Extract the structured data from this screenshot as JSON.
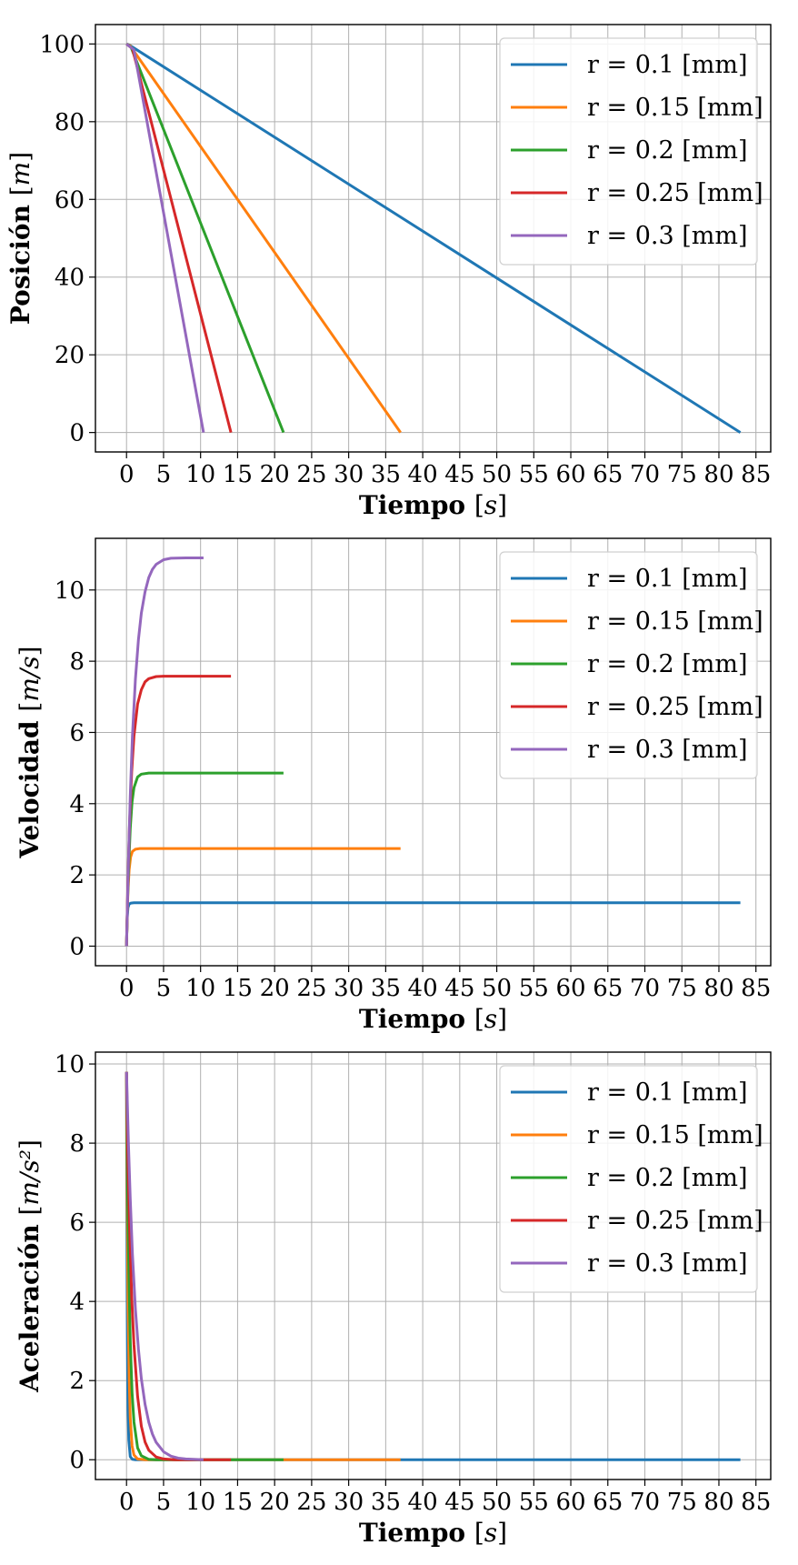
{
  "chart_data": [
    {
      "type": "line",
      "xlabel_bold": "Tiempo",
      "xlabel_unit": "s",
      "ylabel_bold": "Posición",
      "ylabel_unit": "m",
      "xlim": [
        -4.2,
        87
      ],
      "ylim": [
        -5,
        105
      ],
      "xticks": [
        0,
        5,
        10,
        15,
        20,
        25,
        30,
        35,
        40,
        45,
        50,
        55,
        60,
        65,
        70,
        75,
        80,
        85
      ],
      "yticks": [
        0,
        20,
        40,
        60,
        80,
        100
      ],
      "grid": true,
      "legend_position": "top-right",
      "series": [
        {
          "name": "r = 0.1 [mm]",
          "color": "#1f77b4",
          "points": [
            [
              0,
              100
            ],
            [
              0.3,
              99.8
            ],
            [
              82.9,
              0
            ]
          ]
        },
        {
          "name": "r = 0.15 [mm]",
          "color": "#ff7f0e",
          "points": [
            [
              0,
              100
            ],
            [
              0.5,
              99.5
            ],
            [
              37.0,
              0
            ]
          ]
        },
        {
          "name": "r = 0.2 [mm]",
          "color": "#2ca02c",
          "points": [
            [
              0,
              100
            ],
            [
              0.6,
              99.2
            ],
            [
              21.2,
              0
            ]
          ]
        },
        {
          "name": "r = 0.25 [mm]",
          "color": "#d62728",
          "points": [
            [
              0,
              100
            ],
            [
              0.8,
              98.8
            ],
            [
              14.1,
              0
            ]
          ]
        },
        {
          "name": "r = 0.3 [mm]",
          "color": "#9467bd",
          "points": [
            [
              0,
              100
            ],
            [
              1.0,
              98.5
            ],
            [
              10.4,
              0
            ]
          ]
        }
      ]
    },
    {
      "type": "line",
      "xlabel_bold": "Tiempo",
      "xlabel_unit": "s",
      "ylabel_bold": "Velocidad",
      "ylabel_unit": "m/s",
      "xlim": [
        -4.2,
        87
      ],
      "ylim": [
        -0.55,
        11.45
      ],
      "xticks": [
        0,
        5,
        10,
        15,
        20,
        25,
        30,
        35,
        40,
        45,
        50,
        55,
        60,
        65,
        70,
        75,
        80,
        85
      ],
      "yticks": [
        0,
        2,
        4,
        6,
        8,
        10
      ],
      "grid": true,
      "legend_position": "top-right",
      "series": [
        {
          "name": "r = 0.1 [mm]",
          "color": "#1f77b4",
          "points": [
            [
              0,
              0
            ],
            [
              0.05,
              0.48
            ],
            [
              0.1,
              0.8
            ],
            [
              0.2,
              1.08
            ],
            [
              0.35,
              1.18
            ],
            [
              0.6,
              1.21
            ],
            [
              1.0,
              1.22
            ],
            [
              82.9,
              1.22
            ]
          ]
        },
        {
          "name": "r = 0.15 [mm]",
          "color": "#ff7f0e",
          "points": [
            [
              0,
              0
            ],
            [
              0.1,
              0.9
            ],
            [
              0.2,
              1.55
            ],
            [
              0.35,
              2.15
            ],
            [
              0.55,
              2.5
            ],
            [
              0.8,
              2.66
            ],
            [
              1.2,
              2.72
            ],
            [
              1.8,
              2.74
            ],
            [
              37.0,
              2.74
            ]
          ]
        },
        {
          "name": "r = 0.2 [mm]",
          "color": "#2ca02c",
          "points": [
            [
              0,
              0
            ],
            [
              0.15,
              1.3
            ],
            [
              0.3,
              2.3
            ],
            [
              0.5,
              3.3
            ],
            [
              0.75,
              4.05
            ],
            [
              1.0,
              4.45
            ],
            [
              1.5,
              4.75
            ],
            [
              2.0,
              4.83
            ],
            [
              3.0,
              4.86
            ],
            [
              21.2,
              4.86
            ]
          ]
        },
        {
          "name": "r = 0.25 [mm]",
          "color": "#d62728",
          "points": [
            [
              0,
              0
            ],
            [
              0.2,
              1.9
            ],
            [
              0.4,
              3.4
            ],
            [
              0.7,
              4.9
            ],
            [
              1.0,
              5.9
            ],
            [
              1.5,
              6.8
            ],
            [
              2.0,
              7.2
            ],
            [
              2.5,
              7.42
            ],
            [
              3.0,
              7.51
            ],
            [
              4.0,
              7.57
            ],
            [
              5.0,
              7.58
            ],
            [
              14.1,
              7.58
            ]
          ]
        },
        {
          "name": "r = 0.3 [mm]",
          "color": "#9467bd",
          "points": [
            [
              0,
              0
            ],
            [
              0.25,
              2.35
            ],
            [
              0.5,
              4.2
            ],
            [
              0.8,
              5.9
            ],
            [
              1.2,
              7.5
            ],
            [
              1.6,
              8.6
            ],
            [
              2.0,
              9.35
            ],
            [
              2.5,
              9.95
            ],
            [
              3.0,
              10.35
            ],
            [
              3.5,
              10.58
            ],
            [
              4.0,
              10.72
            ],
            [
              5.0,
              10.85
            ],
            [
              6.0,
              10.89
            ],
            [
              8.0,
              10.9
            ],
            [
              10.4,
              10.9
            ]
          ]
        }
      ]
    },
    {
      "type": "line",
      "xlabel_bold": "Tiempo",
      "xlabel_unit": "s",
      "ylabel_bold": "Aceleración",
      "ylabel_unit": "m/s²",
      "xlim": [
        -4.2,
        87
      ],
      "ylim": [
        -0.5,
        10.3
      ],
      "xticks": [
        0,
        5,
        10,
        15,
        20,
        25,
        30,
        35,
        40,
        45,
        50,
        55,
        60,
        65,
        70,
        75,
        80,
        85
      ],
      "yticks": [
        0,
        2,
        4,
        6,
        8,
        10
      ],
      "grid": true,
      "legend_position": "top-right",
      "series": [
        {
          "name": "r = 0.1 [mm]",
          "color": "#1f77b4",
          "points": [
            [
              0,
              9.8
            ],
            [
              0.05,
              6.0
            ],
            [
              0.1,
              3.6
            ],
            [
              0.2,
              1.3
            ],
            [
              0.3,
              0.5
            ],
            [
              0.5,
              0.08
            ],
            [
              0.8,
              0.01
            ],
            [
              1.2,
              0
            ],
            [
              82.9,
              0
            ]
          ]
        },
        {
          "name": "r = 0.15 [mm]",
          "color": "#ff7f0e",
          "points": [
            [
              0,
              9.8
            ],
            [
              0.1,
              6.4
            ],
            [
              0.2,
              4.1
            ],
            [
              0.35,
              2.1
            ],
            [
              0.5,
              1.05
            ],
            [
              0.75,
              0.35
            ],
            [
              1.0,
              0.12
            ],
            [
              1.5,
              0.02
            ],
            [
              2.5,
              0
            ],
            [
              37.0,
              0
            ]
          ]
        },
        {
          "name": "r = 0.2 [mm]",
          "color": "#2ca02c",
          "points": [
            [
              0,
              9.8
            ],
            [
              0.15,
              6.8
            ],
            [
              0.3,
              4.8
            ],
            [
              0.5,
              3.0
            ],
            [
              0.75,
              1.7
            ],
            [
              1.0,
              0.95
            ],
            [
              1.5,
              0.3
            ],
            [
              2.0,
              0.1
            ],
            [
              3.0,
              0.01
            ],
            [
              4.0,
              0
            ],
            [
              21.2,
              0
            ]
          ]
        },
        {
          "name": "r = 0.25 [mm]",
          "color": "#d62728",
          "points": [
            [
              0,
              9.8
            ],
            [
              0.2,
              7.5
            ],
            [
              0.4,
              5.9
            ],
            [
              0.7,
              4.1
            ],
            [
              1.0,
              2.9
            ],
            [
              1.5,
              1.6
            ],
            [
              2.0,
              0.85
            ],
            [
              2.5,
              0.45
            ],
            [
              3.0,
              0.24
            ],
            [
              4.0,
              0.07
            ],
            [
              5.0,
              0.02
            ],
            [
              6.5,
              0
            ],
            [
              14.1,
              0
            ]
          ]
        },
        {
          "name": "r = 0.3 [mm]",
          "color": "#9467bd",
          "points": [
            [
              0,
              9.8
            ],
            [
              0.25,
              8.0
            ],
            [
              0.5,
              6.6
            ],
            [
              0.8,
              5.2
            ],
            [
              1.2,
              3.8
            ],
            [
              1.6,
              2.8
            ],
            [
              2.0,
              2.05
            ],
            [
              2.5,
              1.4
            ],
            [
              3.0,
              0.95
            ],
            [
              3.5,
              0.65
            ],
            [
              4.0,
              0.44
            ],
            [
              5.0,
              0.2
            ],
            [
              6.0,
              0.09
            ],
            [
              7.0,
              0.04
            ],
            [
              8.0,
              0.02
            ],
            [
              10.4,
              0
            ]
          ]
        }
      ]
    }
  ]
}
